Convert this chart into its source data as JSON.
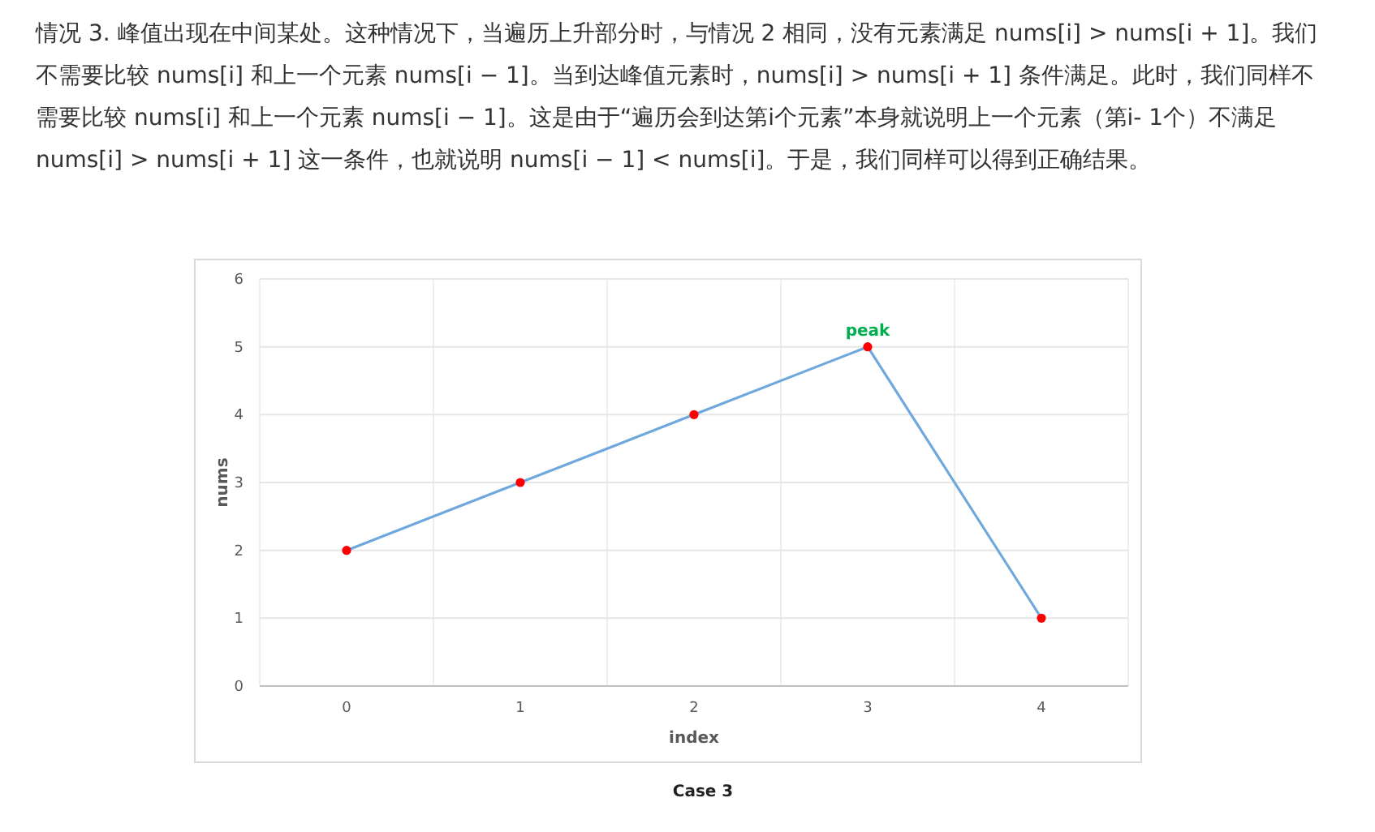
{
  "chart_data": {
    "type": "line",
    "title": "Case 3",
    "xlabel": "index",
    "ylabel": "nums",
    "annotations": [
      "情况 3. 峰值出现在中间某处。这种情况下，当遍历上升部分时，与情况 2 相同，没有元素满足 nums[i] > nums[i + 1]。我们不需要比较 nums[i] 和上一个元素 nums[i − 1]。当到达峰值元素时，nums[i] > nums[i + 1] 条件满足。此时，我们同样不需要比较 nums[i] 和上一个元素 nums[i − 1]。这是由于“遍历会到达第i个元素”本身就说明上一个元素（第i- 1个）不满足 nums[i] > nums[i + 1] 这一条件，也就说明 nums[i − 1] < nums[i]。于是，我们同样可以得到正确结果。",
      {
        "text": "peak",
        "x": "3",
        "y": 5
      }
    ],
    "categories": [
      "0",
      "1",
      "2",
      "3",
      "4"
    ],
    "series": [
      {
        "color": "#6fa8dc",
        "colors": [
          "#ff0000",
          "#ff0000",
          "#ff0000",
          "#ff0000",
          "#ff0000"
        ],
        "values": [
          2,
          3,
          4,
          5,
          1
        ]
      }
    ],
    "ylim": [
      0,
      6
    ],
    "yticks": [
      0,
      1,
      2,
      3,
      4,
      5,
      6
    ],
    "grid": true,
    "marker": "circle",
    "line_style": "solid"
  }
}
